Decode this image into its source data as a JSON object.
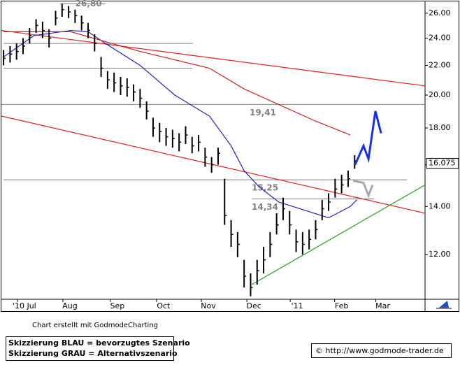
{
  "chart_data": {
    "type": "ohlc",
    "log_scale": true,
    "color": "#000000",
    "xlim": [
      0,
      195.5
    ],
    "ylim": [
      10.4,
      27.0
    ],
    "xticks": [
      {
        "value": 10.6,
        "label": "'10 Jul"
      },
      {
        "value": 31.6,
        "label": "Aug"
      },
      {
        "value": 53.5,
        "label": "Sep"
      },
      {
        "value": 74.8,
        "label": "Oct"
      },
      {
        "value": 95.5,
        "label": "Nov"
      },
      {
        "value": 116.5,
        "label": "Dec"
      },
      {
        "value": 136.5,
        "label": "'11"
      },
      {
        "value": 157,
        "label": "Feb"
      },
      {
        "value": 176,
        "label": "Mar"
      }
    ],
    "yticks": [
      {
        "value": 12,
        "label": "12.00"
      },
      {
        "value": 14,
        "label": "14.00"
      },
      {
        "value": 16,
        "label": "16.00"
      },
      {
        "value": 18,
        "label": "18.00"
      },
      {
        "value": 20,
        "label": "20.00"
      },
      {
        "value": 22,
        "label": "22.00"
      },
      {
        "value": 24,
        "label": "24.00"
      },
      {
        "value": 26,
        "label": "26.00"
      }
    ],
    "x": [
      1,
      4,
      7,
      10,
      13,
      16,
      19,
      22,
      25,
      28,
      31,
      34,
      37,
      40,
      43,
      46,
      49,
      52,
      55,
      58,
      61,
      64,
      67,
      70,
      73,
      76,
      79,
      82,
      85,
      88,
      91,
      94,
      97,
      100,
      103,
      106,
      109,
      112,
      115,
      118,
      121,
      124,
      127,
      130,
      133,
      136,
      139,
      142,
      145,
      148,
      151,
      154,
      157,
      160,
      163
    ],
    "high": [
      23.1,
      23.4,
      23.6,
      24.0,
      24.8,
      25.5,
      25.3,
      24.7,
      26.2,
      26.8,
      26.6,
      26.3,
      25.8,
      25.2,
      24.3,
      22.6,
      21.6,
      21.5,
      21.2,
      21.1,
      20.7,
      20.4,
      19.6,
      18.6,
      18.3,
      18.0,
      17.9,
      17.7,
      18.1,
      17.5,
      17.6,
      16.9,
      16.4,
      16.9,
      15.3,
      13.4,
      12.9,
      11.8,
      11.3,
      11.8,
      12.3,
      12.9,
      13.7,
      14.4,
      13.8,
      13.0,
      12.9,
      13.0,
      13.4,
      14.3,
      14.6,
      15.3,
      15.5,
      15.7,
      16.5
    ],
    "low": [
      22.0,
      22.2,
      22.4,
      22.8,
      23.6,
      24.4,
      24.0,
      23.3,
      25.0,
      25.7,
      25.6,
      25.2,
      24.6,
      24.0,
      23.0,
      21.2,
      20.4,
      20.2,
      20.0,
      19.9,
      19.6,
      19.2,
      18.5,
      17.5,
      17.2,
      17.0,
      16.9,
      16.7,
      17.1,
      16.6,
      16.7,
      15.9,
      15.6,
      16.0,
      13.2,
      12.3,
      11.9,
      10.8,
      10.5,
      10.9,
      11.3,
      11.9,
      12.8,
      13.4,
      12.8,
      12.1,
      12.0,
      12.2,
      12.6,
      13.4,
      13.8,
      14.4,
      14.6,
      14.9,
      15.8
    ],
    "close": [
      22.5,
      22.8,
      23.0,
      23.4,
      24.2,
      25.0,
      24.6,
      24.0,
      25.6,
      26.3,
      26.1,
      25.8,
      25.2,
      24.6,
      23.6,
      21.8,
      21.0,
      20.8,
      20.6,
      20.5,
      20.2,
      19.8,
      19.0,
      18.0,
      17.8,
      17.5,
      17.4,
      17.2,
      17.6,
      17.0,
      17.2,
      16.4,
      16.0,
      16.6,
      13.6,
      12.8,
      12.4,
      11.2,
      10.8,
      11.4,
      11.8,
      12.4,
      13.2,
      13.9,
      13.2,
      12.5,
      12.4,
      12.6,
      13.0,
      13.9,
      14.2,
      14.8,
      15.0,
      15.3,
      16.2
    ],
    "last_price": 16.075,
    "moving_averages": [
      {
        "color": "#2020c0",
        "x": [
          1,
          15,
          32,
          40,
          48,
          64,
          80,
          96,
          106,
          112,
          119,
          128,
          141,
          151,
          161,
          164
        ],
        "values": [
          22.6,
          24.2,
          24.6,
          24.5,
          23.6,
          22.0,
          20.0,
          18.7,
          17.0,
          15.7,
          14.9,
          14.2,
          13.8,
          13.5,
          14.0,
          14.3
        ]
      },
      {
        "color": "#d02020",
        "x": [
          1,
          32,
          64,
          96,
          112,
          128,
          145,
          161
        ],
        "values": [
          24.5,
          24.5,
          23.0,
          21.8,
          20.4,
          19.4,
          18.4,
          17.6
        ]
      }
    ],
    "trendlines": [
      {
        "color": "#e02020",
        "x": [
          0,
          195.5
        ],
        "values": [
          24.6,
          20.6
        ]
      },
      {
        "color": "#e02020",
        "x": [
          0,
          195.5
        ],
        "values": [
          18.7,
          13.7
        ]
      },
      {
        "color": "#20a020",
        "x": [
          115.5,
          195.5
        ],
        "values": [
          10.9,
          15.0
        ]
      }
    ],
    "levels": [
      {
        "value": 26.8,
        "label": "26,80",
        "x": [
          27,
          48
        ]
      },
      {
        "value": 23.6,
        "x": [
          1,
          88.4
        ]
      },
      {
        "value": 21.8,
        "x": [
          1,
          88.1
        ]
      },
      {
        "value": 19.41,
        "label": "19,41",
        "x": [
          0,
          195.5
        ]
      },
      {
        "value": 15.25,
        "label": "15,25",
        "x": [
          1,
          187.1
        ]
      },
      {
        "value": 14.34,
        "label": "14,34",
        "x": [
          115.5,
          172
        ]
      }
    ],
    "scenarios": [
      {
        "color": "#1a2ee8",
        "x": [
          163.2,
          167.1,
          169.4,
          172.6,
          175.2
        ],
        "values": [
          16.0,
          17.0,
          16.3,
          19.0,
          17.7
        ]
      },
      {
        "color": "#a8a8a8",
        "x": [
          162.3,
          167.1,
          169.4,
          171.3
        ],
        "values": [
          15.2,
          15.1,
          14.5,
          15.0
        ]
      }
    ]
  },
  "footer": {
    "credit": "Chart erstellt mit GodmodeCharting",
    "legend_lines": [
      "Skizzierung BLAU = bevorzugtes Szenario",
      "Skizzierung GRAU = Alternativszenario"
    ],
    "copyright": "© http://www.godmode-trader.de"
  }
}
